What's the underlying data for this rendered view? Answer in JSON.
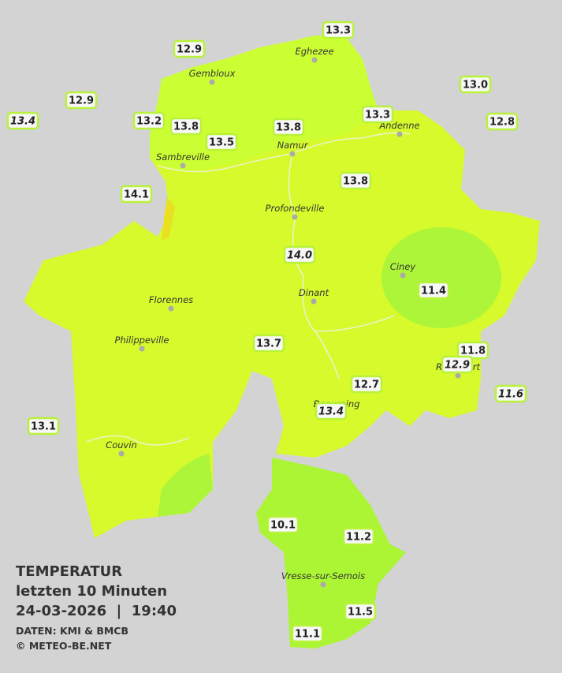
{
  "title": {
    "heading": "TEMPERATUR",
    "subtitle": "letzten 10 Minuten",
    "datetime": "24-03-2026  |  19:40",
    "source": "DATEN: KMI & BMCB",
    "copyright": "© METEO-BE.NET"
  },
  "towns": [
    "Eghezee",
    "Gembloux",
    "Andenne",
    "Namur",
    "Sambreville",
    "Profondeville",
    "Ciney",
    "Dinant",
    "Florennes",
    "Philippeville",
    "Rochefort",
    "Beauraing",
    "Couvin",
    "Vresse-sur-Semois"
  ],
  "stations": [
    {
      "value": "13.3"
    },
    {
      "value": "12.9"
    },
    {
      "value": "13.0"
    },
    {
      "value": "12.9"
    },
    {
      "value": "13.4",
      "italic": true
    },
    {
      "value": "13.2"
    },
    {
      "value": "13.8"
    },
    {
      "value": "13.5"
    },
    {
      "value": "13.8"
    },
    {
      "value": "13.3"
    },
    {
      "value": "12.8"
    },
    {
      "value": "14.1"
    },
    {
      "value": "13.8"
    },
    {
      "value": "14.0",
      "italic": true
    },
    {
      "value": "11.4"
    },
    {
      "value": "13.7"
    },
    {
      "value": "11.8"
    },
    {
      "value": "12.9",
      "italic": true
    },
    {
      "value": "12.7"
    },
    {
      "value": "11.6",
      "italic": true
    },
    {
      "value": "13.4",
      "italic": true
    },
    {
      "value": "13.1"
    },
    {
      "value": "10.1"
    },
    {
      "value": "11.2"
    },
    {
      "value": "11.5"
    },
    {
      "value": "11.1"
    }
  ]
}
